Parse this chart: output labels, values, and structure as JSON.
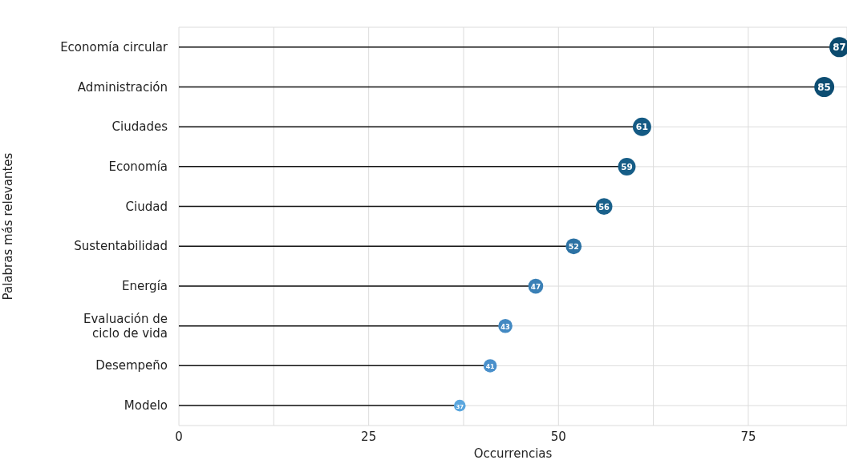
{
  "chart_data": {
    "type": "lollipop",
    "orientation": "horizontal",
    "ylabel": "Palabras más relevantes",
    "xlabel": "Occurrencias",
    "categories": [
      "Economía circular",
      "Administración",
      "Ciudades",
      "Economía",
      "Ciudad",
      "Sustentabilidad",
      "Energía",
      "Evaluación de ciclo de vida",
      "Desempeño",
      "Modelo"
    ],
    "values": [
      87,
      85,
      61,
      59,
      56,
      52,
      47,
      43,
      41,
      37
    ],
    "colors": [
      "#0b4a6e",
      "#0d4d72",
      "#145a84",
      "#165d87",
      "#1a618b",
      "#2c72a4",
      "#3a80b6",
      "#4389c2",
      "#4a90cb",
      "#5aa6de"
    ],
    "sizes": [
      1,
      1,
      0.84,
      0.77,
      0.69,
      0.63,
      0.56,
      0.5,
      0.44,
      0.34
    ],
    "xlim": [
      0,
      88
    ],
    "xticks": [
      0,
      {
        "value": 12.5,
        "label": null
      },
      25,
      {
        "value": 37.5,
        "label": null
      },
      50,
      {
        "value": 62.5,
        "label": null
      },
      75
    ],
    "grid": true,
    "data_labels": true
  }
}
